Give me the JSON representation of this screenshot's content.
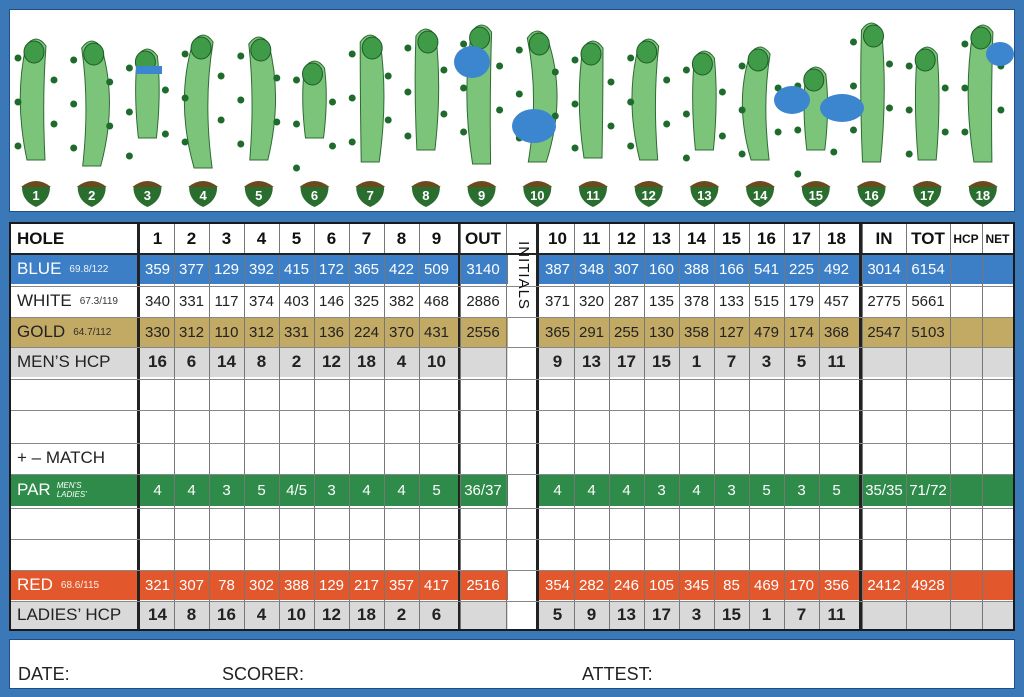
{
  "holes_strip": {
    "acorn_numbers": [
      "1",
      "2",
      "3",
      "4",
      "5",
      "6",
      "7",
      "8",
      "9",
      "10",
      "11",
      "12",
      "13",
      "14",
      "15",
      "16",
      "17",
      "18"
    ]
  },
  "header": {
    "label": "HOLE",
    "front": [
      "1",
      "2",
      "3",
      "4",
      "5",
      "6",
      "7",
      "8",
      "9"
    ],
    "out": "OUT",
    "back": [
      "10",
      "11",
      "12",
      "13",
      "14",
      "15",
      "16",
      "17",
      "18"
    ],
    "in": "IN",
    "tot": "TOT",
    "hcp": "HCP",
    "net": "NET"
  },
  "initials": "INITIALS",
  "rows": {
    "blue": {
      "label": "BLUE",
      "rating": "69.8/122",
      "front": [
        "359",
        "377",
        "129",
        "392",
        "415",
        "172",
        "365",
        "422",
        "509"
      ],
      "out": "3140",
      "back": [
        "387",
        "348",
        "307",
        "160",
        "388",
        "166",
        "541",
        "225",
        "492"
      ],
      "in": "3014",
      "tot": "6154",
      "color": "#3d7fc6"
    },
    "white": {
      "label": "WHITE",
      "rating": "67.3/119",
      "front": [
        "340",
        "331",
        "117",
        "374",
        "403",
        "146",
        "325",
        "382",
        "468"
      ],
      "out": "2886",
      "back": [
        "371",
        "320",
        "287",
        "135",
        "378",
        "133",
        "515",
        "179",
        "457"
      ],
      "in": "2775",
      "tot": "5661",
      "color": "#ffffff"
    },
    "gold": {
      "label": "GOLD",
      "rating": "64.7/112",
      "front": [
        "330",
        "312",
        "110",
        "312",
        "331",
        "136",
        "224",
        "370",
        "431"
      ],
      "out": "2556",
      "back": [
        "365",
        "291",
        "255",
        "130",
        "358",
        "127",
        "479",
        "174",
        "368"
      ],
      "in": "2547",
      "tot": "5103",
      "color": "#c2a964"
    },
    "mens_hcp": {
      "label": "MEN’S HCP",
      "front": [
        "16",
        "6",
        "14",
        "8",
        "2",
        "12",
        "18",
        "4",
        "10"
      ],
      "back": [
        "9",
        "13",
        "17",
        "15",
        "1",
        "7",
        "3",
        "5",
        "11"
      ],
      "color": "#d9d9d9"
    },
    "match": {
      "label": "+ – MATCH"
    },
    "par": {
      "label": "PAR",
      "sub_top": "MEN’S",
      "sub_bottom": "LADIES’",
      "front": [
        "4",
        "4",
        "3",
        "5",
        "4/5",
        "3",
        "4",
        "4",
        "5"
      ],
      "out": "36/37",
      "back": [
        "4",
        "4",
        "4",
        "3",
        "4",
        "3",
        "5",
        "3",
        "5"
      ],
      "in": "35/35",
      "tot": "71/72",
      "color": "#2e8b4a"
    },
    "red": {
      "label": "RED",
      "rating": "68.6/115",
      "front": [
        "321",
        "307",
        "78",
        "302",
        "388",
        "129",
        "217",
        "357",
        "417"
      ],
      "out": "2516",
      "back": [
        "354",
        "282",
        "246",
        "105",
        "345",
        "85",
        "469",
        "170",
        "356"
      ],
      "in": "2412",
      "tot": "4928",
      "color": "#e2572c"
    },
    "ladies_hcp": {
      "label": "LADIES’ HCP",
      "front": [
        "14",
        "8",
        "16",
        "4",
        "10",
        "12",
        "18",
        "2",
        "6"
      ],
      "back": [
        "5",
        "9",
        "13",
        "17",
        "3",
        "15",
        "1",
        "7",
        "11"
      ],
      "color": "#d9d9d9"
    }
  },
  "footer": {
    "date": "DATE:",
    "scorer": "SCORER:",
    "attest": "ATTEST:"
  },
  "colors": {
    "frame": "#3a78b8",
    "blue_row": "#3d7fc6",
    "gold_row": "#c2a964",
    "par_row": "#2e8b4a",
    "red_row": "#e2572c",
    "hcp_row": "#d9d9d9",
    "fairway": "#7cc47a",
    "green": "#3f9b48",
    "tree": "#1f6b2c",
    "water": "#3b86cf",
    "acorn": "#2a6e2f"
  }
}
